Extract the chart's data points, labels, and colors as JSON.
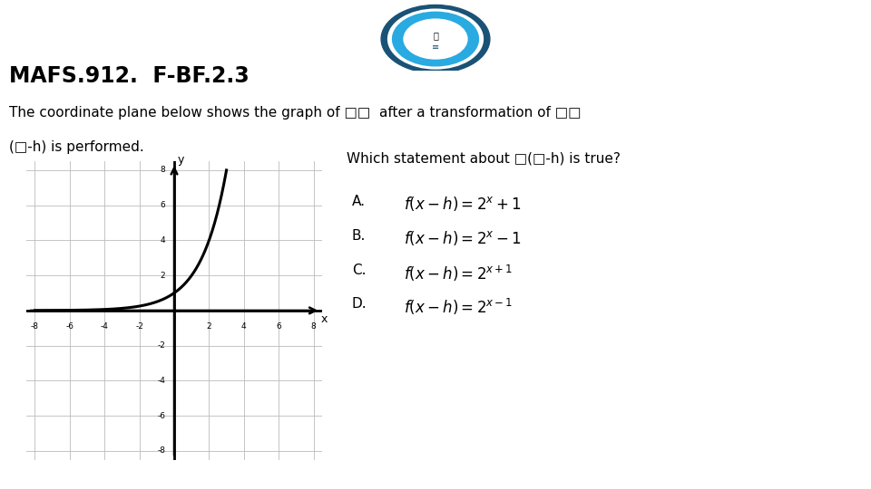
{
  "title": "MAFS.912.  F-BF.2.3",
  "bg_color": "#ffffff",
  "header_bar_light": "#29aae1",
  "header_bar_dark": "#1a5276",
  "body_text1": "The coordinate plane below shows the graph of □□  after a transformation of □□",
  "body_text2": "(□-h) is performed.",
  "question_text": "Which statement about □(□-h) is true?",
  "options_labels": [
    "A.",
    "B.",
    "C.",
    "D."
  ],
  "options_formulas": [
    "$f(x - h) = 2^x + 1$",
    "$f(x - h) = 2^x - 1$",
    "$f(x - h) = 2^{x+1}$",
    "$f(x - h) = 2^{x-1}$"
  ],
  "graph_xlim": [
    -8.5,
    8.5
  ],
  "graph_ylim": [
    -8.5,
    8.5
  ],
  "graph_xticks": [
    -8,
    -6,
    -4,
    -2,
    2,
    4,
    6,
    8
  ],
  "graph_yticks": [
    -8,
    -6,
    -4,
    -2,
    2,
    4,
    6,
    8
  ],
  "curve_color": "#000000",
  "grid_color": "#bbbbbb",
  "axis_color": "#000000",
  "logo_outer": "#1a5276",
  "logo_mid": "#29aae1",
  "logo_inner": "#ffffff"
}
